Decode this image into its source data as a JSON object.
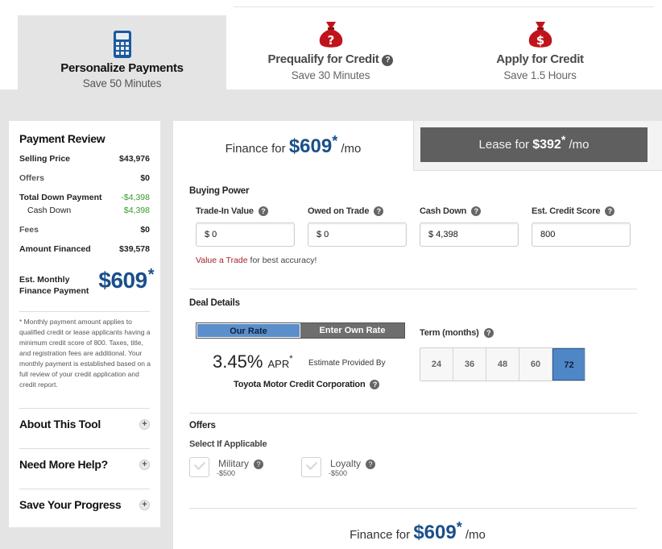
{
  "steps": [
    {
      "title": "Personalize Payments",
      "subtitle": "Save 50 Minutes",
      "icon": "calculator-icon"
    },
    {
      "title": "Prequalify for Credit",
      "subtitle": "Save 30 Minutes",
      "icon": "money-bag-question-icon"
    },
    {
      "title": "Apply for Credit",
      "subtitle": "Save 1.5 Hours",
      "icon": "money-bag-dollar-icon"
    }
  ],
  "review": {
    "title": "Payment Review",
    "selling_price_label": "Selling Price",
    "selling_price": "$43,976",
    "offers_label": "Offers",
    "offers": "$0",
    "total_down_label": "Total Down Payment",
    "total_down": "-$4,398",
    "cash_down_label": "Cash Down",
    "cash_down": "$4,398",
    "fees_label": "Fees",
    "fees": "$0",
    "amount_financed_label": "Amount Financed",
    "amount_financed": "$39,578",
    "monthly_label_1": "Est. Monthly",
    "monthly_label_2": "Finance Payment",
    "monthly_value": "$609",
    "monthly_star": "*",
    "note": "* Monthly payment amount applies to qualified credit or lease applicants having a minimum credit score of 800.  Taxes, title, and registration fees are additional. Your monthly payment is established based on a full review of your credit application and credit report."
  },
  "accordion": [
    "About This Tool",
    "Need More Help?",
    "Save Your Progress"
  ],
  "tabs": {
    "finance_prefix": "Finance for",
    "finance_amount": "$609",
    "finance_suffix": "/mo",
    "lease_prefix": "Lease for",
    "lease_amount": "$392",
    "lease_suffix": "/mo",
    "star": "*"
  },
  "buying_power": {
    "title": "Buying Power",
    "fields": [
      {
        "label": "Trade-In Value",
        "value": "$ 0"
      },
      {
        "label": "Owed on Trade",
        "value": "$ 0"
      },
      {
        "label": "Cash Down",
        "value": "$ 4,398"
      },
      {
        "label": "Est. Credit Score",
        "value": "800"
      }
    ],
    "trade_link": "Value a Trade",
    "trade_note": " for best accuracy!"
  },
  "deal": {
    "title": "Deal Details",
    "our_rate": "Our Rate",
    "own_rate": "Enter Own Rate",
    "apr_value": "3.45%",
    "apr_label": "APR",
    "apr_star": "*",
    "estimate_by": "Estimate Provided By",
    "lender": "Toyota Motor Credit Corporation",
    "term_label": "Term (months)",
    "terms": [
      "24",
      "36",
      "48",
      "60",
      "72"
    ],
    "selected_term": "72"
  },
  "offers": {
    "title": "Offers",
    "subtitle": "Select If Applicable",
    "items": [
      {
        "name": "Military",
        "amount": "-$500"
      },
      {
        "name": "Loyalty",
        "amount": "-$500"
      }
    ]
  },
  "bottom": {
    "prefix": "Finance for",
    "amount": "$609",
    "suffix": "/mo",
    "star": "*"
  },
  "help_glyph": "?",
  "plus_glyph": "+",
  "colors": {
    "accent_blue": "#1a4f8a",
    "brand_red": "#c0141c",
    "green": "#3a9a2f",
    "selected_blue": "#4f86c6"
  }
}
